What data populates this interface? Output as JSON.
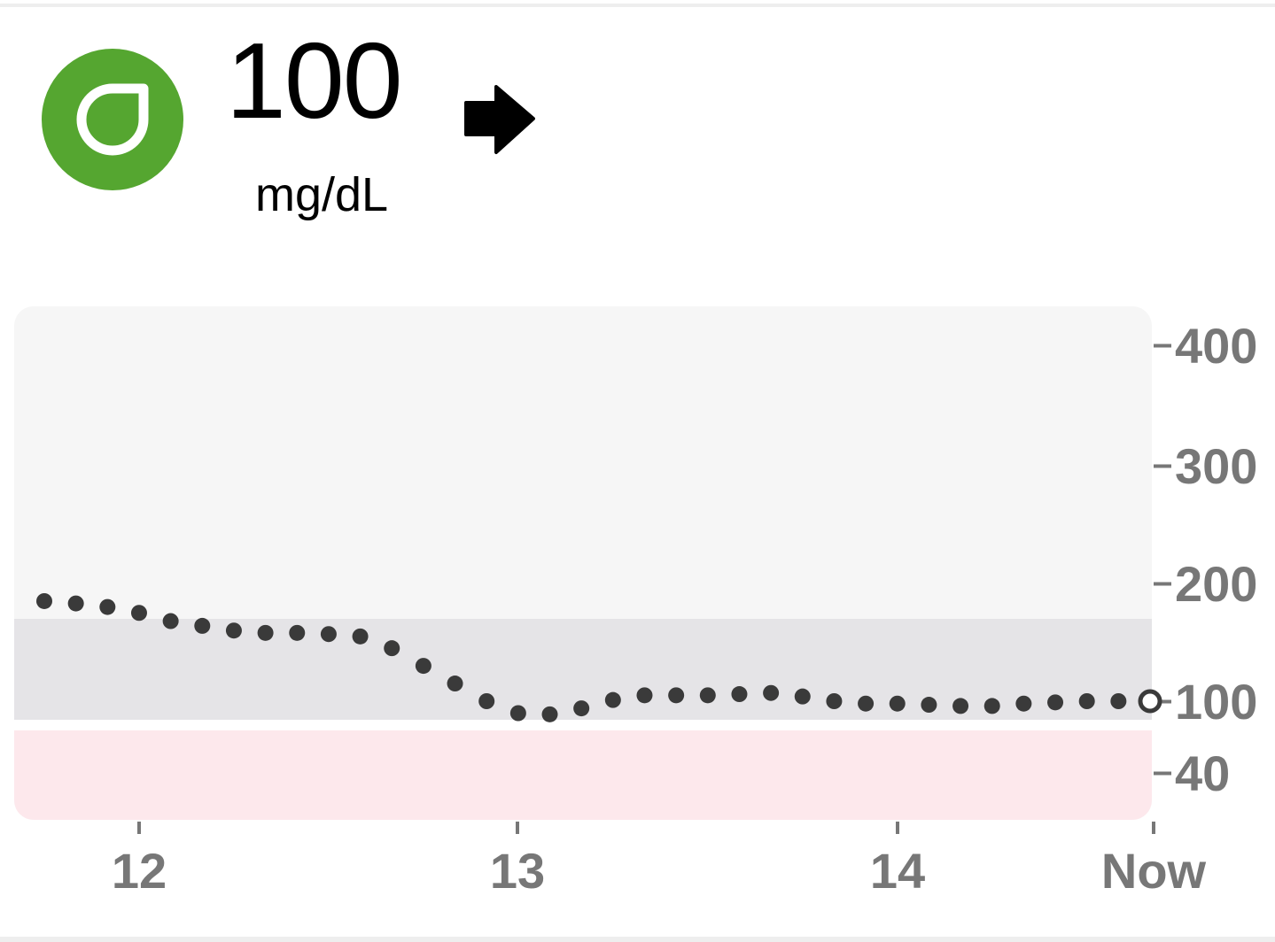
{
  "reading": {
    "value": "100",
    "unit": "mg/dL",
    "trend_icon": "arrow-right-icon",
    "status_icon": "sensor-drop-icon",
    "status_color": "#55a630"
  },
  "chart_data": {
    "type": "scatter",
    "x_ticks": [
      "12",
      "13",
      "14",
      "Now"
    ],
    "y_ticks": [
      "400",
      "300",
      "200",
      "100",
      "40"
    ],
    "target_range": [
      70,
      180
    ],
    "low_range": [
      0,
      70
    ],
    "colors": {
      "background": "#f6f6f6",
      "target_band": "#e5e4e7",
      "low_band": "#fde8ec",
      "points": "#3a3a3a",
      "axis_text": "#777777"
    },
    "series": [
      {
        "values": [
          185,
          183,
          180,
          175,
          168,
          164,
          160,
          158,
          158,
          157,
          155,
          145,
          130,
          115,
          100,
          90,
          89,
          94,
          101,
          105,
          105,
          105,
          106,
          107,
          104,
          100,
          98,
          98,
          97,
          96,
          96,
          98,
          99,
          100,
          100,
          100
        ]
      }
    ]
  }
}
